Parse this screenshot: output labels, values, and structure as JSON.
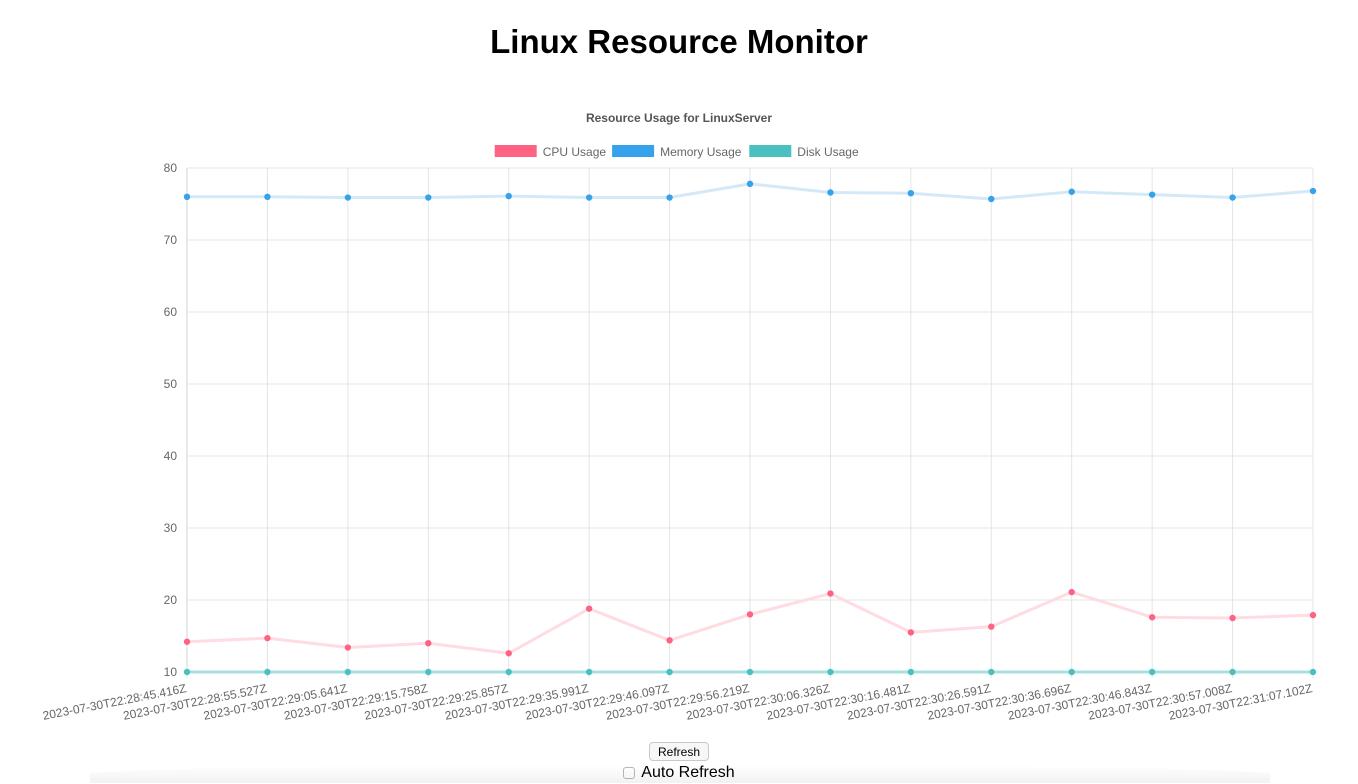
{
  "page": {
    "title": "Linux Resource Monitor"
  },
  "controls": {
    "refresh_label": "Refresh",
    "auto_refresh_label": "Auto Refresh",
    "auto_refresh_checked": false
  },
  "chart_data": {
    "type": "line",
    "title": "Resource Usage for LinuxServer",
    "legend_position": "top",
    "grid": true,
    "ylim": [
      10,
      80
    ],
    "yticks": [
      10,
      20,
      30,
      40,
      50,
      60,
      70,
      80
    ],
    "xlabel": "",
    "ylabel": "",
    "categories": [
      "2023-07-30T22:28:45.416Z",
      "2023-07-30T22:28:55.527Z",
      "2023-07-30T22:29:05.641Z",
      "2023-07-30T22:29:15.758Z",
      "2023-07-30T22:29:25.857Z",
      "2023-07-30T22:29:35.991Z",
      "2023-07-30T22:29:46.097Z",
      "2023-07-30T22:29:56.219Z",
      "2023-07-30T22:30:06.326Z",
      "2023-07-30T22:30:16.481Z",
      "2023-07-30T22:30:26.591Z",
      "2023-07-30T22:30:36.696Z",
      "2023-07-30T22:30:46.843Z",
      "2023-07-30T22:30:57.008Z",
      "2023-07-30T22:31:07.102Z"
    ],
    "series": [
      {
        "name": "CPU Usage",
        "color": "#ff6384",
        "line_color": "#ffdbe2",
        "values": [
          14.2,
          14.7,
          13.4,
          14.0,
          12.6,
          18.8,
          14.4,
          18.0,
          20.9,
          15.5,
          16.3,
          21.1,
          17.6,
          17.5,
          17.9
        ]
      },
      {
        "name": "Memory Usage",
        "color": "#36a2eb",
        "line_color": "#d4e9f8",
        "values": [
          76.0,
          76.0,
          75.9,
          75.9,
          76.1,
          75.9,
          75.9,
          77.8,
          76.6,
          76.5,
          75.7,
          76.7,
          76.3,
          75.9,
          76.8
        ]
      },
      {
        "name": "Disk Usage",
        "color": "#4bc0c0",
        "line_color": "#a8e0e0",
        "values": [
          10.0,
          10.0,
          10.0,
          10.0,
          10.0,
          10.0,
          10.0,
          10.0,
          10.0,
          10.0,
          10.0,
          10.0,
          10.0,
          10.0,
          10.0
        ]
      }
    ]
  }
}
